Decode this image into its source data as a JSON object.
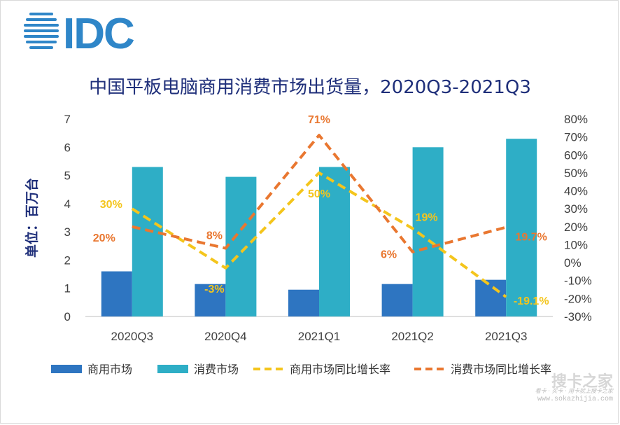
{
  "logo": {
    "text": "IDC",
    "color": "#2f86c8"
  },
  "chart_data": {
    "type": "bar",
    "title": "中国平板电脑商用消费市场出货量，2020Q3-2021Q3",
    "categories": [
      "2020Q3",
      "2020Q4",
      "2021Q1",
      "2021Q2",
      "2021Q3"
    ],
    "ylabel": "单位：百万台",
    "ylim": [
      0,
      7
    ],
    "yticks": [
      "0",
      "1",
      "2",
      "3",
      "4",
      "5",
      "6",
      "7"
    ],
    "y2lim": [
      -30,
      80
    ],
    "y2ticks": [
      "-30%",
      "-20%",
      "-10%",
      "0%",
      "10%",
      "20%",
      "30%",
      "40%",
      "50%",
      "60%",
      "70%",
      "80%"
    ],
    "grid": false,
    "legend_position": "bottom",
    "series": [
      {
        "name": "商用市场",
        "kind": "bar",
        "axis": "left",
        "color": "#2e75c1",
        "values": [
          1.6,
          1.15,
          0.95,
          1.15,
          1.3
        ]
      },
      {
        "name": "消费市场",
        "kind": "bar",
        "axis": "left",
        "color": "#2eaec6",
        "values": [
          5.3,
          4.95,
          5.3,
          6.0,
          6.3
        ]
      },
      {
        "name": "商用市场同比增长率",
        "kind": "line",
        "style": "dashed",
        "axis": "right",
        "color": "#f4c51c",
        "values": [
          30,
          -3,
          50,
          19,
          -19.1
        ],
        "labels": [
          "30%",
          "-3%",
          "50%",
          "19%",
          "-19.1%"
        ]
      },
      {
        "name": "消费市场同比增长率",
        "kind": "line",
        "style": "dashed",
        "axis": "right",
        "color": "#e97730",
        "values": [
          20,
          8,
          71,
          6,
          19.7
        ],
        "labels": [
          "20%",
          "8%",
          "71%",
          "6%",
          "19.7%"
        ]
      }
    ]
  },
  "watermark": {
    "title": "搜卡之家",
    "tagline": "看卡 · 买卡 · 用卡就上搜卡之家",
    "url": "www.sokazhijia.com"
  }
}
